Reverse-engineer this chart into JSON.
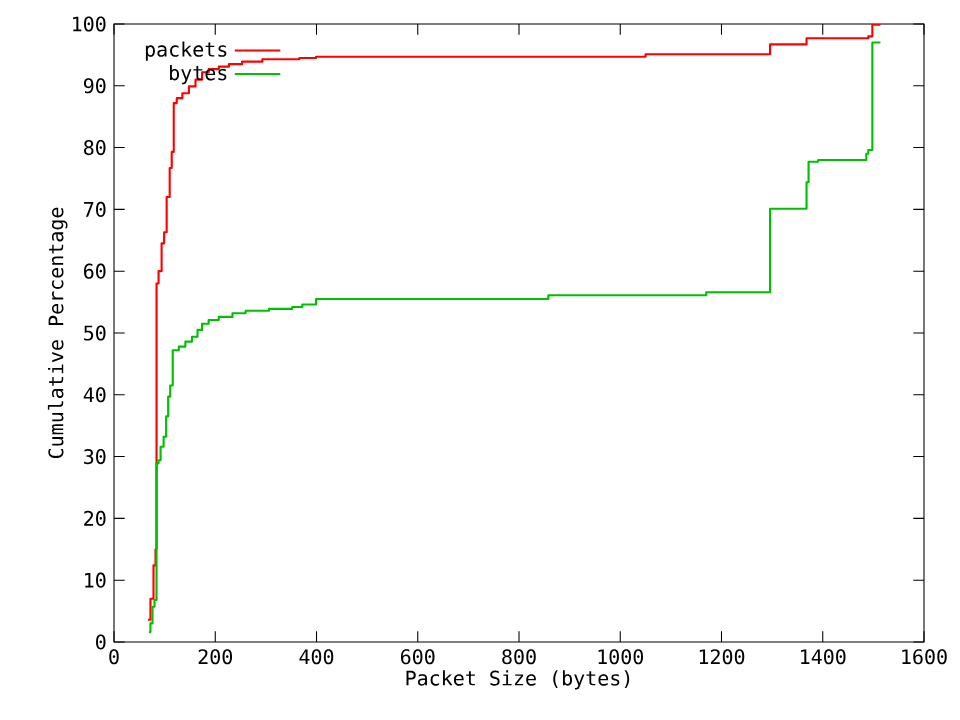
{
  "chart_data": {
    "type": "step",
    "xlabel": "Packet Size (bytes)",
    "ylabel": "Cumulative Percentage",
    "xlim": [
      0,
      1600
    ],
    "ylim": [
      0,
      100
    ],
    "xticks": [
      0,
      200,
      400,
      600,
      800,
      1000,
      1200,
      1400,
      1600
    ],
    "yticks": [
      0,
      10,
      20,
      30,
      40,
      50,
      60,
      70,
      80,
      90,
      100
    ],
    "legend": "top left",
    "grid": false,
    "series": [
      {
        "name": "packets",
        "color": "#ff0000",
        "x": [
          67,
          72,
          78,
          82,
          84,
          88,
          94,
          99,
          104,
          110,
          114,
          118,
          124,
          135,
          148,
          161,
          174,
          187,
          207,
          227,
          253,
          293,
          366,
          399,
          1050,
          1296,
          1368,
          1490,
          1498,
          1514
        ],
        "values": [
          3.6,
          7,
          12.4,
          15,
          58,
          60,
          64.5,
          66.3,
          72,
          76.7,
          79.3,
          87.2,
          88,
          88.8,
          89.9,
          91,
          92.2,
          92.7,
          93.1,
          93.5,
          93.9,
          94.3,
          94.5,
          94.7,
          95.1,
          96.7,
          97.7,
          98,
          99.9,
          99.9
        ]
      },
      {
        "name": "bytes",
        "color": "#00c000",
        "x": [
          69,
          72,
          76,
          80,
          84,
          88,
          92,
          98,
          103,
          107,
          111,
          116,
          128,
          141,
          154,
          165,
          174,
          187,
          207,
          234,
          260,
          306,
          352,
          372,
          399,
          858,
          1170,
          1296,
          1368,
          1372,
          1391,
          1486,
          1490,
          1498,
          1514
        ],
        "values": [
          1.6,
          3,
          5.7,
          6.8,
          28.9,
          29.4,
          31.6,
          33.2,
          36.5,
          39.7,
          41.5,
          47.2,
          47.8,
          48.6,
          49.4,
          50.5,
          51.5,
          52.1,
          52.6,
          53.2,
          53.6,
          53.9,
          54.2,
          54.6,
          55.5,
          56.1,
          56.6,
          70.1,
          74.4,
          77.7,
          78,
          79,
          79.6,
          97,
          97
        ]
      }
    ]
  }
}
